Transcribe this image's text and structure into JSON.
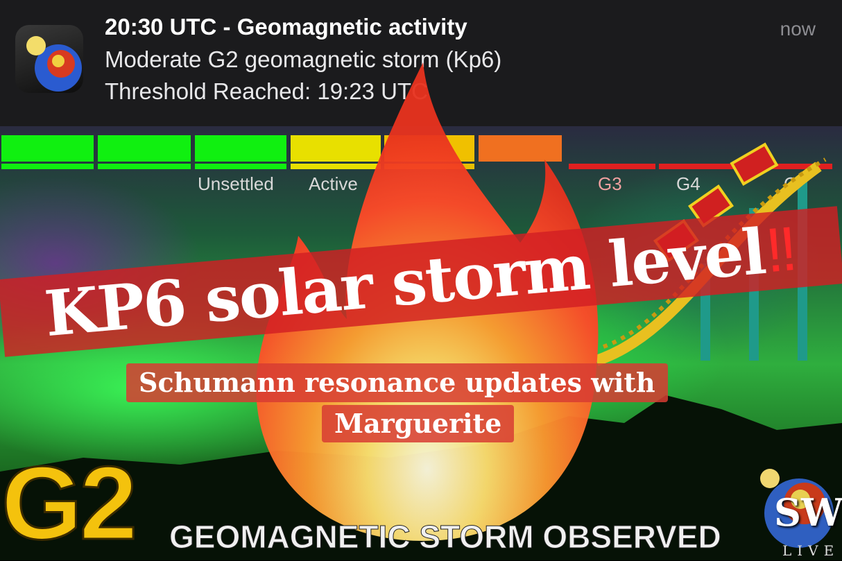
{
  "notification": {
    "title": "20:30 UTC - Geomagnetic activity",
    "body_line1": "Moderate G2 geomagnetic storm (Kp6)",
    "body_line2": "Threshold Reached: 19:23 UTC",
    "time": "now",
    "app_icon": "earth-sun-icon"
  },
  "scale": {
    "segment_colors": [
      "#10f010",
      "#10f010",
      "#10f010",
      "#e8e000",
      "#f0c000",
      "#f07020",
      "#e02020",
      "#e02020",
      "#e02020"
    ],
    "labels": [
      "Unsettled",
      "Active",
      "G3",
      "G4",
      "G5"
    ]
  },
  "banner": {
    "text": "KP6 solar storm level",
    "emphasis": "‼"
  },
  "caption": {
    "line1": "Schumann resonance updates with",
    "line2": "Marguerite"
  },
  "headline": {
    "big": "G2",
    "sub": "GEOMAGNETIC STORM OBSERVED"
  },
  "logo": {
    "text": "SW",
    "sub": "LIVE"
  },
  "colors": {
    "banner": "#d21e23",
    "g2": "#f4c20d",
    "notification_bg": "#1b1b1d"
  }
}
